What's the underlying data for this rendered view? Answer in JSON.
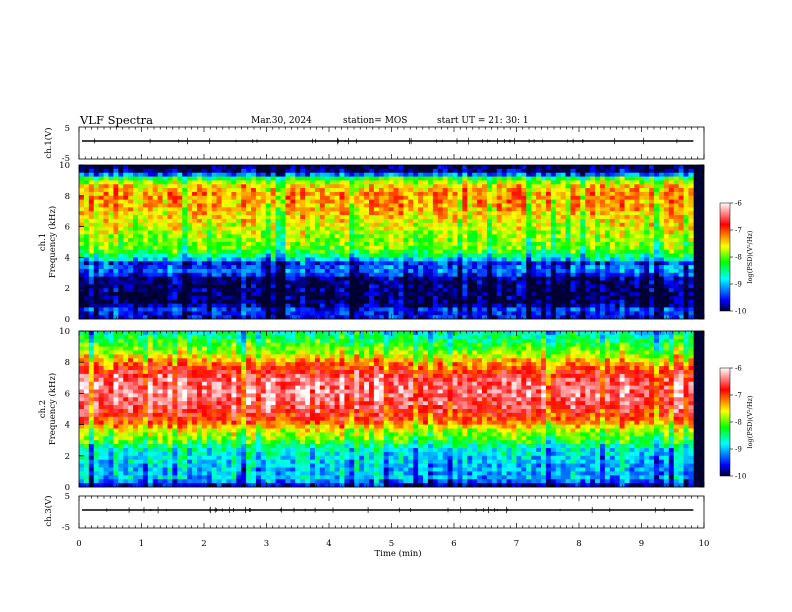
{
  "header": {
    "title": "VLF Spectra",
    "date": "Mar.30, 2024",
    "station": "station= MOS",
    "start": "start  UT  =   21: 30: 1"
  },
  "chart_data": [
    {
      "type": "line",
      "panel": "ch1-waveform",
      "ylabel": "ch.1(V)",
      "xlim": [
        0,
        10
      ],
      "ylim": [
        -5,
        5
      ],
      "yticks": [
        "5",
        "-5"
      ],
      "baseline_value": 0
    },
    {
      "type": "heatmap",
      "panel": "ch1-spectrogram",
      "ylabel": "ch.1\nFrequency (kHz)",
      "ylabel_line1": "ch.1",
      "ylabel_line2": "Frequency (kHz)",
      "xlim": [
        0,
        9.83
      ],
      "ylim": [
        0,
        10
      ],
      "yticks": [
        "0",
        "2",
        "4",
        "6",
        "8",
        "10"
      ],
      "colorbar": {
        "label": "log(PSD)(V²/Hz)",
        "range": [
          -10,
          -6
        ],
        "ticks": [
          "-6",
          "-7",
          "-8",
          "-9",
          "-10"
        ],
        "colors": [
          "#000033",
          "#0000ff",
          "#00ffff",
          "#00ff00",
          "#ffff00",
          "#ff0000",
          "#ffffff"
        ]
      },
      "profile": [
        {
          "f": 0.0,
          "v": -9.5
        },
        {
          "f": 0.3,
          "v": -9.6
        },
        {
          "f": 0.6,
          "v": -9.4
        },
        {
          "f": 1.0,
          "v": -10.0
        },
        {
          "f": 2.0,
          "v": -9.9
        },
        {
          "f": 2.6,
          "v": -9.9
        },
        {
          "f": 3.0,
          "v": -9.3
        },
        {
          "f": 3.3,
          "v": -9.2
        },
        {
          "f": 3.6,
          "v": -9.5
        },
        {
          "f": 4.0,
          "v": -8.6
        },
        {
          "f": 4.5,
          "v": -8.0
        },
        {
          "f": 5.5,
          "v": -7.8
        },
        {
          "f": 7.0,
          "v": -7.4
        },
        {
          "f": 8.0,
          "v": -7.2
        },
        {
          "f": 8.7,
          "v": -7.5
        },
        {
          "f": 9.1,
          "v": -8.1
        },
        {
          "f": 9.4,
          "v": -9.3
        },
        {
          "f": 9.7,
          "v": -10.0
        },
        {
          "f": 10.0,
          "v": -10.0
        }
      ]
    },
    {
      "type": "heatmap",
      "panel": "ch2-spectrogram",
      "ylabel": "ch.2\nFrequency (kHz)",
      "ylabel_line1": "ch.2",
      "ylabel_line2": "Frequency (kHz)",
      "xlim": [
        0,
        9.83
      ],
      "ylim": [
        0,
        10
      ],
      "yticks": [
        "0",
        "2",
        "4",
        "6",
        "8",
        "10"
      ],
      "colorbar": {
        "label": "log(PSD)(V²/Hz)",
        "range": [
          -10,
          -6
        ],
        "ticks": [
          "-6",
          "-7",
          "-8",
          "-9",
          "-10"
        ],
        "colors": [
          "#000033",
          "#0000ff",
          "#00ffff",
          "#00ff00",
          "#ffff00",
          "#ff0000",
          "#ffffff"
        ]
      },
      "profile": [
        {
          "f": 0.0,
          "v": -9.8
        },
        {
          "f": 0.5,
          "v": -9.0
        },
        {
          "f": 1.5,
          "v": -8.9
        },
        {
          "f": 2.5,
          "v": -8.6
        },
        {
          "f": 3.0,
          "v": -8.0
        },
        {
          "f": 3.5,
          "v": -7.8
        },
        {
          "f": 4.2,
          "v": -7.0
        },
        {
          "f": 5.0,
          "v": -6.6
        },
        {
          "f": 6.0,
          "v": -6.3
        },
        {
          "f": 7.0,
          "v": -6.5
        },
        {
          "f": 7.8,
          "v": -7.0
        },
        {
          "f": 8.5,
          "v": -7.7
        },
        {
          "f": 9.3,
          "v": -8.2
        },
        {
          "f": 10.0,
          "v": -8.6
        }
      ]
    },
    {
      "type": "line",
      "panel": "ch3-waveform",
      "ylabel": "ch.3(V)",
      "xlim": [
        0,
        10
      ],
      "ylim": [
        -5,
        5
      ],
      "yticks": [
        "5",
        "-5"
      ],
      "baseline_value": 0
    }
  ],
  "xaxis": {
    "label": "Time  (min)",
    "range": [
      0,
      10
    ],
    "ticks": [
      "0",
      "1",
      "2",
      "3",
      "4",
      "5",
      "6",
      "7",
      "8",
      "9",
      "10"
    ]
  }
}
